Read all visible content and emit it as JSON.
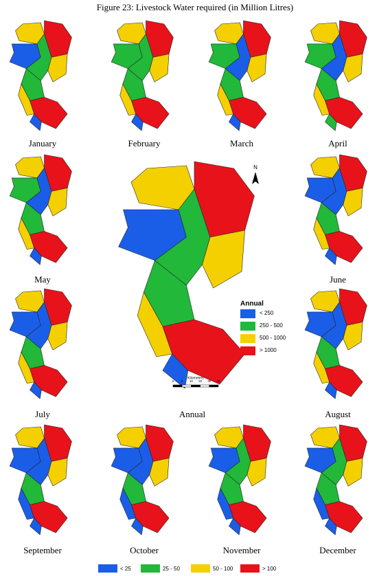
{
  "title": "Figure 23: Livestock Water required (in Million Litres)",
  "maps": [
    {
      "label": "January"
    },
    {
      "label": "February"
    },
    {
      "label": "March"
    },
    {
      "label": "April"
    },
    {
      "label": "May"
    },
    {
      "label": "June"
    },
    {
      "label": "July"
    },
    {
      "label": "August"
    },
    {
      "label": "September"
    },
    {
      "label": "October"
    },
    {
      "label": "November"
    },
    {
      "label": "December"
    }
  ],
  "annual": {
    "label": "Annual",
    "legend_title": "Annual",
    "north": "N",
    "legend": [
      {
        "label": "< 250",
        "color": "#1a5ee8"
      },
      {
        "label": "250 - 500",
        "color": "#22b83a"
      },
      {
        "label": "500 - 1000",
        "color": "#f5d000"
      },
      {
        "label": "> 1000",
        "color": "#e8121a"
      }
    ],
    "scale": {
      "title": "Kilometers",
      "ticks": [
        "0",
        "5",
        "10",
        "20",
        "30",
        "40"
      ]
    }
  },
  "legend": [
    {
      "label": "< 25",
      "color": "#1a5ee8"
    },
    {
      "label": "25  - 50",
      "color": "#22b83a"
    },
    {
      "label": "50  - 100",
      "color": "#f5d000"
    },
    {
      "label": "> 100",
      "color": "#e8121a"
    }
  ]
}
